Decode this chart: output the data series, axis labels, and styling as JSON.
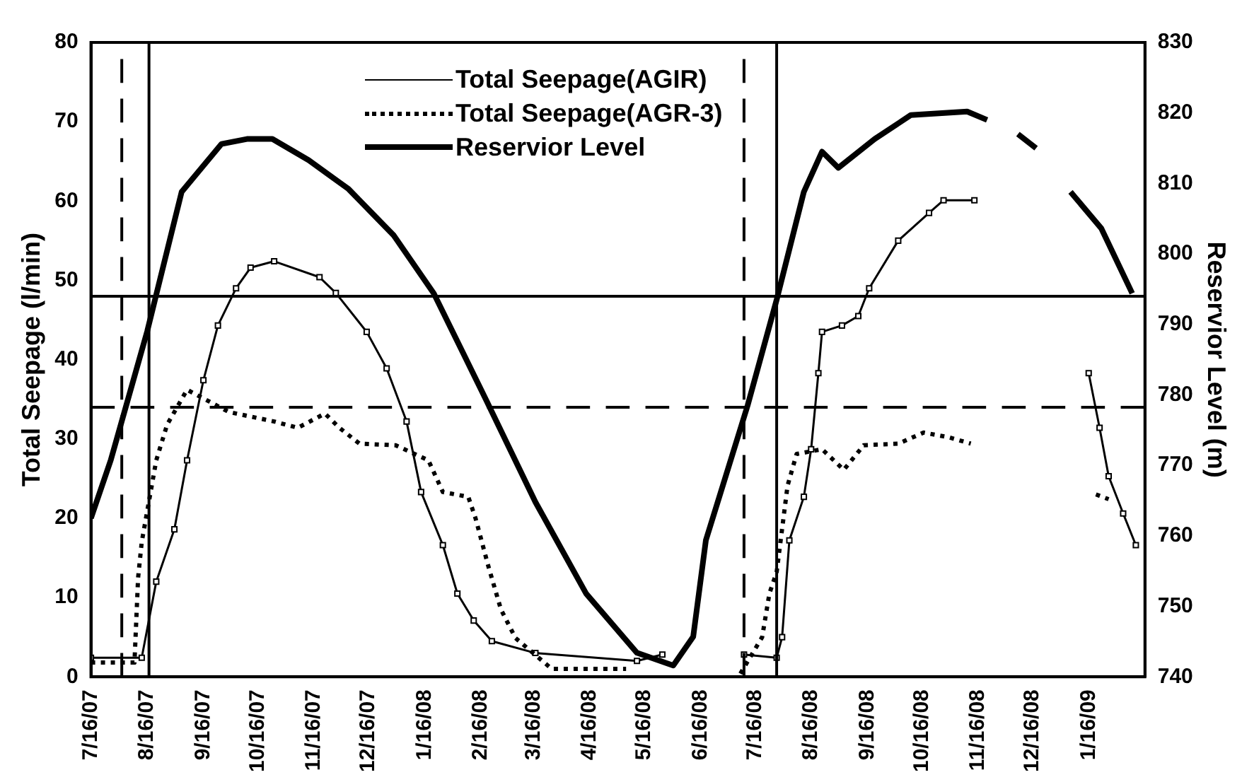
{
  "chart_data": {
    "type": "line",
    "xlabel": null,
    "ylabel": "Total Seepage (l/min)",
    "y2label": "Reservior Level (m)",
    "xlim": [
      "2007-07-16",
      "2009-02-16"
    ],
    "xticks": [
      {
        "value": "2007-07-16",
        "label": "7/16/07"
      },
      {
        "value": "2007-08-16",
        "label": "8/16/07"
      },
      {
        "value": "2007-09-16",
        "label": "9/16/07"
      },
      {
        "value": "2007-10-16",
        "label": "10/16/07"
      },
      {
        "value": "2007-11-16",
        "label": "11/16/07"
      },
      {
        "value": "2007-12-16",
        "label": "12/16/07"
      },
      {
        "value": "2008-01-16",
        "label": "1/16/08"
      },
      {
        "value": "2008-02-16",
        "label": "2/16/08"
      },
      {
        "value": "2008-03-16",
        "label": "3/16/08"
      },
      {
        "value": "2008-04-16",
        "label": "4/16/08"
      },
      {
        "value": "2008-05-16",
        "label": "5/16/08"
      },
      {
        "value": "2008-06-16",
        "label": "6/16/08"
      },
      {
        "value": "2008-07-16",
        "label": "7/16/08"
      },
      {
        "value": "2008-08-16",
        "label": "8/16/08"
      },
      {
        "value": "2008-09-16",
        "label": "9/16/08"
      },
      {
        "value": "2008-10-16",
        "label": "10/16/08"
      },
      {
        "value": "2008-11-16",
        "label": "11/16/08"
      },
      {
        "value": "2008-12-16",
        "label": "12/16/08"
      },
      {
        "value": "2009-01-16",
        "label": "1/16/09"
      }
    ],
    "ylim": [
      0,
      80
    ],
    "yticks": [
      0,
      10,
      20,
      30,
      40,
      50,
      60,
      70,
      80
    ],
    "y2lim": [
      740,
      830
    ],
    "y2ticks": [
      740,
      750,
      760,
      770,
      780,
      790,
      800,
      810,
      820,
      830
    ],
    "legend": "top",
    "series": [
      {
        "name": "Total Seepage(AGIR)",
        "color": "#000000",
        "marker": "square",
        "line_style": "solid",
        "x": [
          "2007-07-16",
          "2007-08-13",
          "2007-08-21",
          "2007-08-31",
          "2007-09-07",
          "2007-09-16",
          "2007-09-24",
          "2007-10-04",
          "2007-10-12",
          "2007-10-25",
          "2007-11-19",
          "2007-11-28",
          "2007-12-15",
          "2007-12-26",
          "2008-01-06",
          "2008-01-14",
          "2008-01-26",
          "2008-02-03",
          "2008-02-12",
          "2008-02-22",
          "2008-03-17",
          "2008-05-12",
          "2008-05-26",
          "2008-06-20",
          "2008-07-10",
          "2008-07-28",
          "2008-07-31",
          "2008-08-04",
          "2008-08-12",
          "2008-08-16",
          "2008-08-20",
          "2008-08-22",
          "2008-09-02",
          "2008-09-11",
          "2008-09-17",
          "2008-10-03",
          "2008-10-20",
          "2008-10-28",
          "2008-11-14",
          "2008-12-15",
          "2009-01-16",
          "2009-01-22",
          "2009-01-27",
          "2009-02-04",
          "2009-02-11"
        ],
        "values": [
          2.4,
          2.4,
          12,
          18.6,
          27.3,
          37.4,
          44.3,
          49,
          51.6,
          52.4,
          50.4,
          48.4,
          43.5,
          38.9,
          32.2,
          23.3,
          16.6,
          10.5,
          7.1,
          4.5,
          3,
          2,
          2.8,
          null,
          2.8,
          2.4,
          5,
          17.2,
          22.7,
          28.7,
          38.3,
          43.5,
          44.3,
          45.5,
          49,
          55,
          58.5,
          60.1,
          60.1,
          null,
          38.3,
          31.4,
          25.3,
          20.6,
          16.6
        ]
      },
      {
        "name": "Total Seepage(AGR-3)",
        "color": "#000000",
        "marker": "none",
        "line_style": "dotted",
        "x": [
          "2007-07-16",
          "2007-08-09",
          "2007-08-11",
          "2007-08-13",
          "2007-08-21",
          "2007-08-27",
          "2007-09-07",
          "2007-09-30",
          "2007-10-25",
          "2007-11-07",
          "2007-11-22",
          "2007-11-30",
          "2007-12-11",
          "2007-12-31",
          "2008-01-18",
          "2008-01-26",
          "2008-02-09",
          "2008-02-13",
          "2008-02-20",
          "2008-02-27",
          "2008-03-06",
          "2008-03-26",
          "2008-05-06",
          "2008-06-10",
          "2008-07-08",
          "2008-07-20",
          "2008-07-24",
          "2008-07-28",
          "2008-08-03",
          "2008-08-08",
          "2008-08-22",
          "2008-09-03",
          "2008-09-14",
          "2008-10-03",
          "2008-10-17",
          "2008-10-31",
          "2008-11-12",
          "2008-12-15",
          "2009-01-20",
          "2009-01-27"
        ],
        "values": [
          1.8,
          1.8,
          12.5,
          17,
          27.3,
          31.8,
          36.2,
          33.4,
          32.2,
          31.4,
          33.2,
          31.4,
          29.4,
          29.2,
          27.3,
          23.3,
          22.7,
          20,
          14,
          8.5,
          4.9,
          1,
          1,
          null,
          0.4,
          5,
          10.5,
          13.2,
          24.1,
          28.1,
          28.7,
          26.1,
          29.2,
          29.4,
          30.8,
          30.2,
          29.4,
          null,
          23,
          22.4
        ]
      },
      {
        "name": "Reservior Level",
        "color": "#000000",
        "marker": "none",
        "line_style": "solid",
        "axis": "y2",
        "x": [
          "2007-07-16",
          "2007-07-27",
          "2007-08-16",
          "2007-09-04",
          "2007-09-26",
          "2007-10-10",
          "2007-10-24",
          "2007-11-13",
          "2007-12-05",
          "2007-12-30",
          "2008-01-21",
          "2008-02-19",
          "2008-03-17",
          "2008-04-14",
          "2008-05-12",
          "2008-06-01",
          "2008-06-12",
          "2008-06-19",
          "2008-07-12",
          "2008-07-28",
          "2008-08-12",
          "2008-08-22",
          "2008-08-31",
          "2008-09-20",
          "2008-10-10",
          "2008-11-10",
          "2008-11-21",
          "2008-12-01",
          "2008-12-08",
          "2008-12-18",
          "2008-12-28",
          "2009-01-06",
          "2009-01-23",
          "2009-02-09"
        ],
        "values": [
          762.5,
          770.8,
          789,
          808.8,
          815.6,
          816.3,
          816.3,
          813.3,
          809.2,
          802.6,
          794.4,
          779.2,
          764.8,
          751.8,
          743.4,
          741.6,
          745.7,
          759.4,
          778.5,
          793.5,
          808.8,
          814.5,
          812.2,
          816.3,
          819.7,
          820.2,
          819,
          null,
          817,
          815,
          null,
          808.8,
          803.6,
          794.4
        ]
      }
    ],
    "ref_lines": [
      {
        "axis": "y",
        "value": 48,
        "color": "#000000",
        "line_style": "solid"
      },
      {
        "axis": "y",
        "value": 34,
        "color": "#000000",
        "line_style": "dashed"
      },
      {
        "axis": "x",
        "value": "2007-08-02",
        "color": "#000000",
        "line_style": "dashed"
      },
      {
        "axis": "x",
        "value": "2007-08-17",
        "color": "#000000",
        "line_style": "solid"
      },
      {
        "axis": "x",
        "value": "2008-07-10",
        "color": "#000000",
        "line_style": "dashed"
      },
      {
        "axis": "x",
        "value": "2008-07-28",
        "color": "#000000",
        "line_style": "solid"
      }
    ]
  }
}
